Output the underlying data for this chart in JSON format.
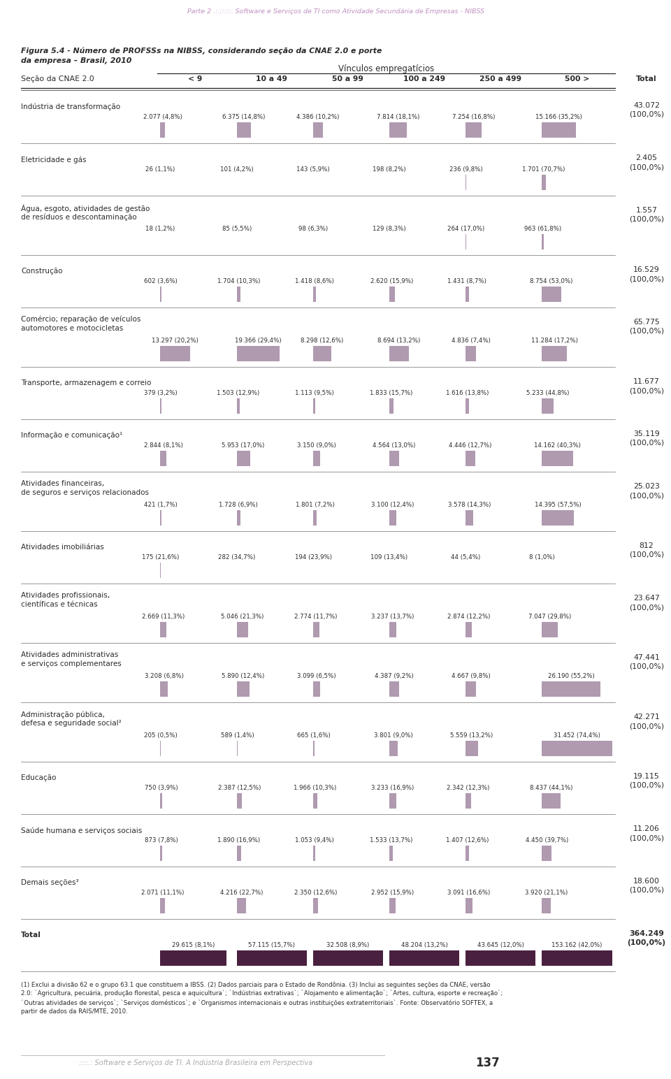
{
  "page_header": "Parte 2 .:.:::::. Software e Serviços de TI como Atividade Secundária de Empresas - NIBSS",
  "fig_caption_line1": "Figura 5.4 - Número de PROFSSs na NIBSS, considerando seção da CNAE 2.0 e porte",
  "fig_caption_line2": "da empresa – Brasil, 2010",
  "vinculos_label": "Vínculos empregatícios",
  "col_header_section": "Seção da CNAE 2.0",
  "col_headers": [
    "< 9",
    "10 a 49",
    "50 a 99",
    "100 a 249",
    "250 a 499",
    "500 >",
    "Total"
  ],
  "rows": [
    {
      "label_lines": [
        "Indústria de transformação"
      ],
      "values": [
        2077,
        6375,
        4386,
        7814,
        7254,
        15166,
        43072
      ],
      "pcts": [
        "4,8%",
        "14,8%",
        "10,2%",
        "18,1%",
        "16,8%",
        "35,2%",
        "100,0%"
      ]
    },
    {
      "label_lines": [
        "Eletricidade e gás"
      ],
      "values": [
        26,
        101,
        143,
        198,
        236,
        1701,
        2405
      ],
      "pcts": [
        "1,1%",
        "4,2%",
        "5,9%",
        "8,2%",
        "9,8%",
        "70,7%",
        "100,0%"
      ]
    },
    {
      "label_lines": [
        "Água, esgoto, atividades de gestão",
        "de resíduos e descontaminação"
      ],
      "values": [
        18,
        85,
        98,
        129,
        264,
        963,
        1557
      ],
      "pcts": [
        "1,2%",
        "5,5%",
        "6,3%",
        "8,3%",
        "17,0%",
        "61,8%",
        "100,0%"
      ]
    },
    {
      "label_lines": [
        "Construção"
      ],
      "values": [
        602,
        1704,
        1418,
        2620,
        1431,
        8754,
        16529
      ],
      "pcts": [
        "3,6%",
        "10,3%",
        "8,6%",
        "15,9%",
        "8,7%",
        "53,0%",
        "100,0%"
      ]
    },
    {
      "label_lines": [
        "Comércio; reparação de veículos",
        "automotores e motocicletas"
      ],
      "values": [
        13297,
        19366,
        8298,
        8694,
        4836,
        11284,
        65775
      ],
      "pcts": [
        "20,2%",
        "29,4%",
        "12,6%",
        "13,2%",
        "7,4%",
        "17,2%",
        "100,0%"
      ]
    },
    {
      "label_lines": [
        "Transporte, armazenagem e correio"
      ],
      "values": [
        379,
        1503,
        1113,
        1833,
        1616,
        5233,
        11677
      ],
      "pcts": [
        "3,2%",
        "12,9%",
        "9,5%",
        "15,7%",
        "13,8%",
        "44,8%",
        "100,0%"
      ]
    },
    {
      "label_lines": [
        "Informação e comunicação¹"
      ],
      "values": [
        2844,
        5953,
        3150,
        4564,
        4446,
        14162,
        35119
      ],
      "pcts": [
        "8,1%",
        "17,0%",
        "9,0%",
        "13,0%",
        "12,7%",
        "40,3%",
        "100,0%"
      ]
    },
    {
      "label_lines": [
        "Atividades financeiras,",
        "de seguros e serviços relacionados"
      ],
      "values": [
        421,
        1728,
        1801,
        3100,
        3578,
        14395,
        25023
      ],
      "pcts": [
        "1,7%",
        "6,9%",
        "7,2%",
        "12,4%",
        "14,3%",
        "57,5%",
        "100,0%"
      ]
    },
    {
      "label_lines": [
        "Atividades imobiliárias"
      ],
      "values": [
        175,
        282,
        194,
        109,
        44,
        8,
        812
      ],
      "pcts": [
        "21,6%",
        "34,7%",
        "23,9%",
        "13,4%",
        "5,4%",
        "1,0%",
        "100,0%"
      ]
    },
    {
      "label_lines": [
        "Atividades profissionais,",
        "científicas e técnicas"
      ],
      "values": [
        2669,
        5046,
        2774,
        3237,
        2874,
        7047,
        23647
      ],
      "pcts": [
        "11,3%",
        "21,3%",
        "11,7%",
        "13,7%",
        "12,2%",
        "29,8%",
        "100,0%"
      ]
    },
    {
      "label_lines": [
        "Atividades administrativas",
        "e serviços complementares"
      ],
      "values": [
        3208,
        5890,
        3099,
        4387,
        4667,
        26190,
        47441
      ],
      "pcts": [
        "6,8%",
        "12,4%",
        "6,5%",
        "9,2%",
        "9,8%",
        "55,2%",
        "100,0%"
      ]
    },
    {
      "label_lines": [
        "Administração pública,",
        "defesa e seguridade social²"
      ],
      "values": [
        205,
        589,
        665,
        3801,
        5559,
        31452,
        42271
      ],
      "pcts": [
        "0,5%",
        "1,4%",
        "1,6%",
        "9,0%",
        "13,2%",
        "74,4%",
        "100,0%"
      ]
    },
    {
      "label_lines": [
        "Educação"
      ],
      "values": [
        750,
        2387,
        1966,
        3233,
        2342,
        8437,
        19115
      ],
      "pcts": [
        "3,9%",
        "12,5%",
        "10,3%",
        "16,9%",
        "12,3%",
        "44,1%",
        "100,0%"
      ]
    },
    {
      "label_lines": [
        "Saúde humana e serviços sociais"
      ],
      "values": [
        873,
        1890,
        1053,
        1533,
        1407,
        4450,
        11206
      ],
      "pcts": [
        "7,8%",
        "16,9%",
        "9,4%",
        "13,7%",
        "12,6%",
        "39,7%",
        "100,0%"
      ]
    },
    {
      "label_lines": [
        "Demais seções³"
      ],
      "values": [
        2071,
        4216,
        2350,
        2952,
        3091,
        3920,
        18600
      ],
      "pcts": [
        "11,1%",
        "22,7%",
        "12,6%",
        "15,9%",
        "16,6%",
        "21,1%",
        "100,0%"
      ]
    },
    {
      "label_lines": [
        "Total"
      ],
      "values": [
        29615,
        57115,
        32508,
        48204,
        43645,
        153162,
        364249
      ],
      "pcts": [
        "8,1%",
        "15,7%",
        "8,9%",
        "13,2%",
        "12,0%",
        "42,0%",
        "100,0%"
      ]
    }
  ],
  "footnotes": [
    "(1) Exclui a divisão 62 e o grupo 63.1 que constituem a IBSS. (2) Dados parciais para o Estado de Rondônia. (3) Inclui as seguintes seções da CNAE, versão",
    "2.0: `Agricultura, pecuária, produção florestal, pesca e aquicultura`; `Indústrias extrativas`; `Alojamento e alimentação`; `Artes, cultura, esporte e recreação`;",
    "`Outras atividades de serviços`; `Serviços domésticos`; e `Organismos internacionais e outras instituições extraterritoriais`. Fonte: Observatório SOFTEX, a",
    "partir de dados da RAIS/MTE, 2010."
  ],
  "page_footer": "::::.: Software e Serviços de TI: A Indústria Brasileira em Perspectiva",
  "page_number": "137",
  "bar_color": "#b09ab0",
  "total_bar_color": "#4a2040",
  "bg_color": "#ffffff"
}
